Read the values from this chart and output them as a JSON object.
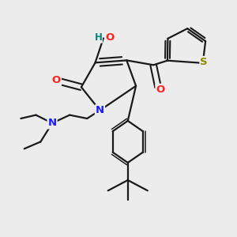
{
  "background_color": "#ececec",
  "fig_size": [
    3.0,
    3.0
  ],
  "dpi": 100,
  "colors": {
    "bond": "#1a1a1a",
    "N": "#1a1aff",
    "O": "#ff2020",
    "S": "#8a8a00",
    "H_O": "#008080",
    "C": "#1a1a1a"
  }
}
